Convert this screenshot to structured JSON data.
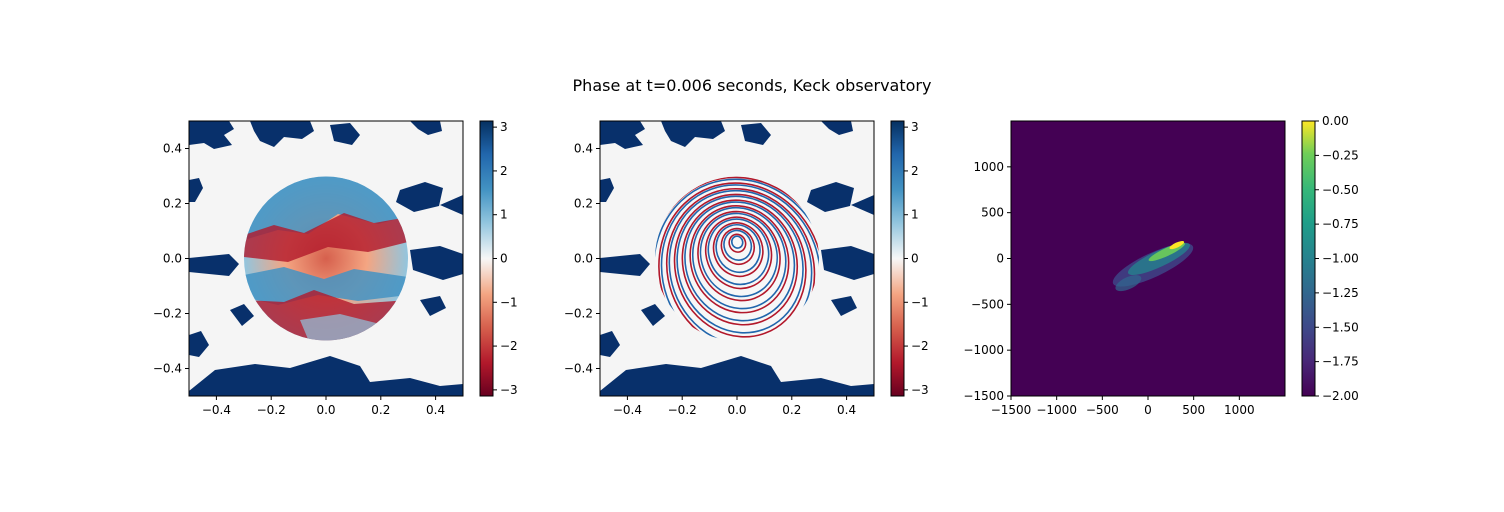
{
  "figure": {
    "suptitle": "Phase at t=0.006 seconds, Keck observatory"
  },
  "chart_data": [
    {
      "type": "heatmap",
      "panel": "left",
      "description_visible": "phase screen with circular aperture, diverging colormap",
      "xlim": [
        -0.5,
        0.5
      ],
      "ylim": [
        -0.5,
        0.5
      ],
      "xticks": [
        -0.4,
        -0.2,
        0.0,
        0.2,
        0.4
      ],
      "yticks": [
        -0.4,
        -0.2,
        0.0,
        0.2,
        0.4
      ],
      "xtick_labels": [
        "−0.4",
        "−0.2",
        "0.0",
        "0.2",
        "0.4"
      ],
      "ytick_labels": [
        "−0.4",
        "−0.2",
        "0.0",
        "0.2",
        "0.4"
      ],
      "aperture_radius": 0.3,
      "colormap": "RdBu",
      "colorbar": {
        "min": -3.14,
        "max": 3.14,
        "ticks": [
          3,
          2,
          1,
          0,
          -1,
          -2,
          -3
        ],
        "tick_labels": [
          "3",
          "2",
          "1",
          "0",
          "−1",
          "−2",
          "−3"
        ]
      },
      "colors": {
        "outside_high": "#08306b",
        "outside_low": "#f5f5f5"
      }
    },
    {
      "type": "heatmap",
      "panel": "middle",
      "description_visible": "phase screen with defocus-like concentric fringes inside aperture",
      "xlim": [
        -0.5,
        0.5
      ],
      "ylim": [
        -0.5,
        0.5
      ],
      "xticks": [
        -0.4,
        -0.2,
        0.0,
        0.2,
        0.4
      ],
      "yticks": [
        -0.4,
        -0.2,
        0.0,
        0.2,
        0.4
      ],
      "xtick_labels": [
        "−0.4",
        "−0.2",
        "0.0",
        "0.2",
        "0.4"
      ],
      "ytick_labels": [
        "−0.4",
        "−0.2",
        "0.0",
        "0.2",
        "0.4"
      ],
      "aperture_radius": 0.3,
      "colormap": "RdBu",
      "colorbar": {
        "min": -3.14,
        "max": 3.14,
        "ticks": [
          3,
          2,
          1,
          0,
          -1,
          -2,
          -3
        ],
        "tick_labels": [
          "3",
          "2",
          "1",
          "0",
          "−1",
          "−2",
          "−3"
        ]
      }
    },
    {
      "type": "heatmap",
      "panel": "right",
      "description_visible": "log intensity image, elongated speckle blob near center",
      "xlim": [
        -1500,
        1500
      ],
      "ylim": [
        -1500,
        1500
      ],
      "xticks": [
        -1500,
        -1000,
        -500,
        0,
        500,
        1000
      ],
      "yticks": [
        -1500,
        -1000,
        -500,
        0,
        500,
        1000
      ],
      "xtick_labels": [
        "−1500",
        "−1000",
        "−500",
        "0",
        "500",
        "1000"
      ],
      "ytick_labels": [
        "−1500",
        "−1000",
        "−500",
        "0",
        "500",
        "1000"
      ],
      "colormap": "viridis",
      "colorbar": {
        "min": -2.0,
        "max": 0.0,
        "ticks": [
          0.0,
          -0.25,
          -0.5,
          -0.75,
          -1.0,
          -1.25,
          -1.5,
          -1.75,
          -2.0
        ],
        "tick_labels": [
          "0.00",
          "−0.25",
          "−0.50",
          "−0.75",
          "−1.00",
          "−1.25",
          "−1.50",
          "−1.75",
          "−2.00"
        ]
      },
      "blob": {
        "center": [
          60,
          -60
        ],
        "extent_x": [
          -500,
          380
        ],
        "extent_y": [
          -400,
          160
        ]
      }
    }
  ]
}
